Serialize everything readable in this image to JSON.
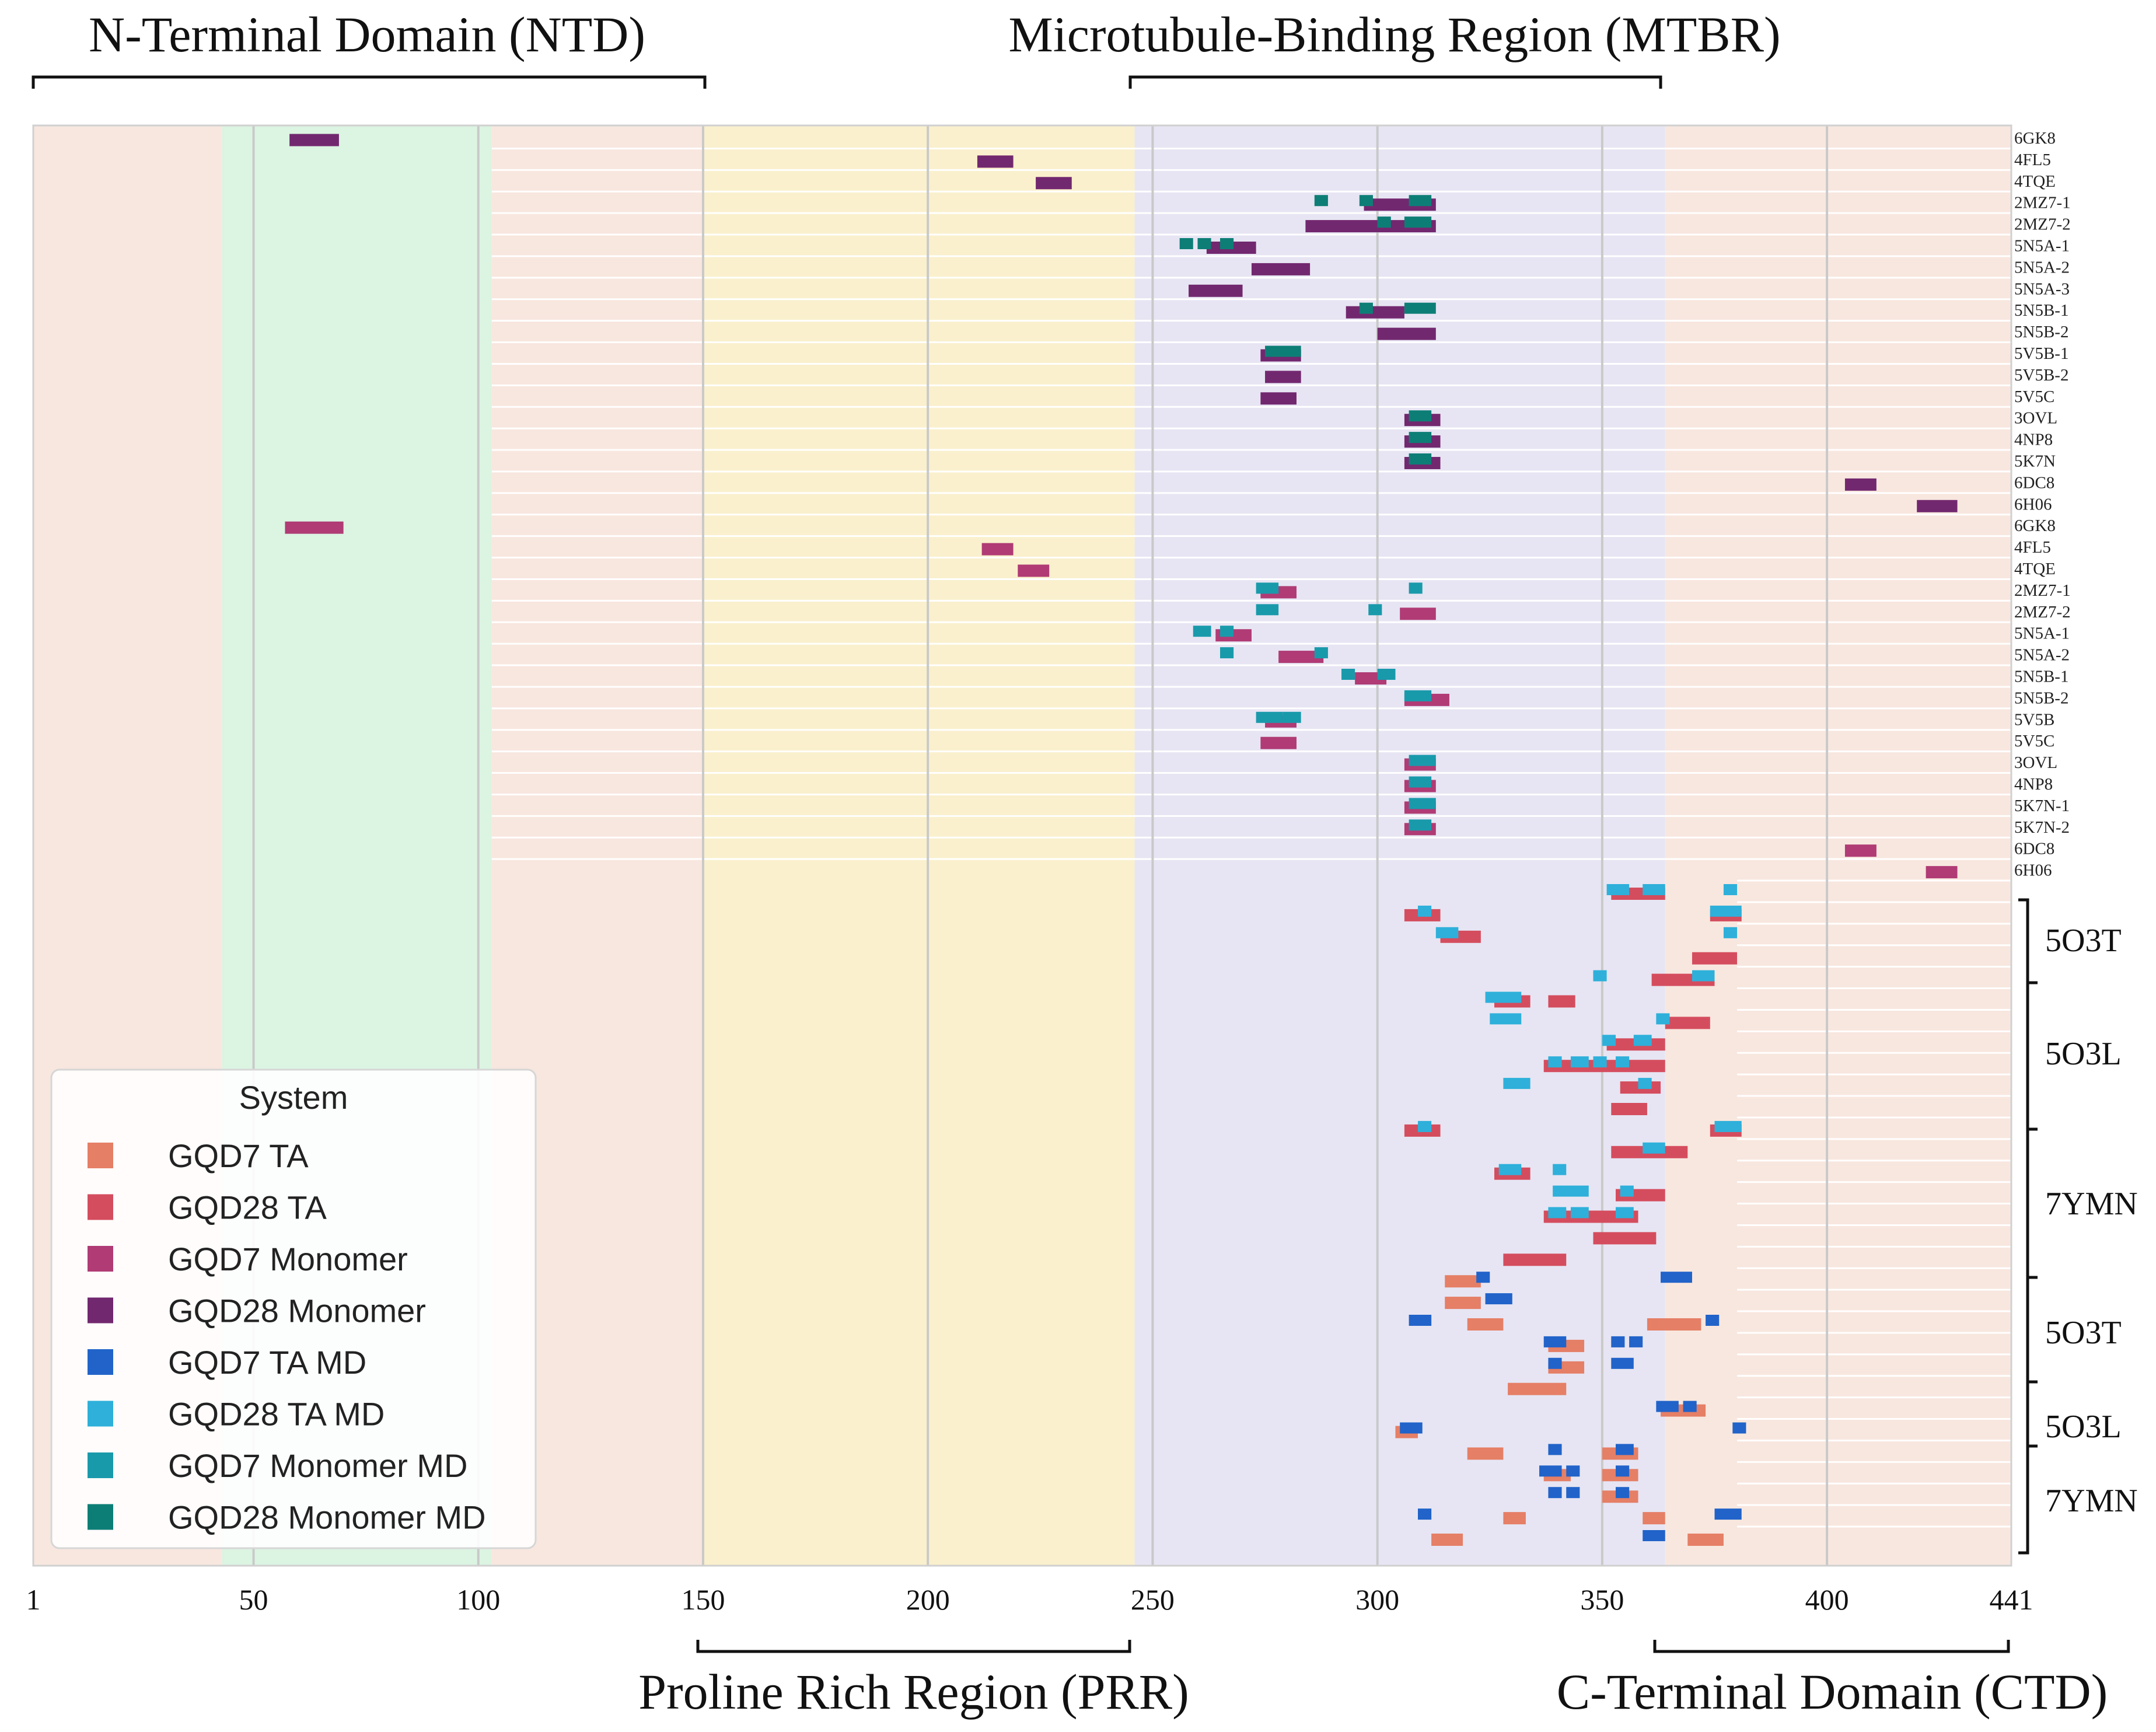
{
  "chart_data": {
    "type": "interval",
    "xlim": [
      1,
      441
    ],
    "x_ticks": [
      1,
      50,
      100,
      150,
      200,
      250,
      300,
      350,
      400,
      441
    ],
    "domains_top": [
      {
        "label": "N-Terminal Domain (NTD)",
        "start": 1,
        "end": 150
      },
      {
        "label": "Microtubule-Binding Region (MTBR)",
        "start": 244,
        "end": 363
      }
    ],
    "domains_bottom": [
      {
        "label": "Proline Rich Region (PRR)",
        "start": 151,
        "end": 243
      },
      {
        "label": "C-Terminal Domain (CTD)",
        "start": 364,
        "end": 441
      }
    ],
    "background_bands": [
      {
        "start": 1,
        "end": 43,
        "color": "#f8e7df"
      },
      {
        "start": 43,
        "end": 103,
        "color": "#dcf4e2"
      },
      {
        "start": 103,
        "end": 150,
        "color": "#f8e7df"
      },
      {
        "start": 150,
        "end": 246,
        "color": "#faf0cd"
      },
      {
        "start": 246,
        "end": 364,
        "color": "#e7e5f3"
      },
      {
        "start": 364,
        "end": 441,
        "color": "#f8e7df"
      }
    ],
    "legend": {
      "title": "System",
      "entries": [
        {
          "key": "g7ta",
          "label": "GQD7 TA",
          "color": "#e57f66"
        },
        {
          "key": "g28ta",
          "label": "GQD28 TA",
          "color": "#d44d5e"
        },
        {
          "key": "g7mono",
          "label": "GQD7 Monomer",
          "color": "#b03b75"
        },
        {
          "key": "g28mono",
          "label": "GQD28 Monomer",
          "color": "#72286f"
        },
        {
          "key": "g7tamd",
          "label": "GQD7 TA MD",
          "color": "#2163c9"
        },
        {
          "key": "g28tamd",
          "label": "GQD28 TA MD",
          "color": "#2eb0da"
        },
        {
          "key": "g7monomd",
          "label": "GQD7 Monomer MD",
          "color": "#199aab"
        },
        {
          "key": "g28monomd",
          "label": "GQD28 Monomer MD",
          "color": "#0d7e76"
        }
      ]
    },
    "row_labels": [
      "6GK8",
      "4FL5",
      "4TQE",
      "2MZ7-1",
      "2MZ7-2",
      "5N5A-1",
      "5N5A-2",
      "5N5A-3",
      "5N5B-1",
      "5N5B-2",
      "5V5B-1",
      "5V5B-2",
      "5V5C",
      "3OVL",
      "4NP8",
      "5K7N",
      "6DC8",
      "6H06",
      "6GK8",
      "4FL5",
      "4TQE",
      "2MZ7-1",
      "2MZ7-2",
      "5N5A-1",
      "5N5A-2",
      "5N5B-1",
      "5N5B-2",
      "5V5B",
      "5V5C",
      "3OVL",
      "4NP8",
      "5K7N-1",
      "5K7N-2",
      "6DC8",
      "6H06"
    ],
    "group_labels": [
      "5O3T",
      "5O3L",
      "7YMN",
      "5O3T",
      "5O3L",
      "7YMN"
    ],
    "intervals": [
      {
        "system": "g28mono",
        "row": 0,
        "start": 58,
        "end": 69
      },
      {
        "system": "g28mono",
        "row": 1,
        "start": 211,
        "end": 219
      },
      {
        "system": "g28mono",
        "row": 2,
        "start": 224,
        "end": 232
      },
      {
        "system": "g28mono",
        "row": 3,
        "start": 297,
        "end": 313
      },
      {
        "system": "g28monomd",
        "row": 3,
        "start": 286,
        "end": 289
      },
      {
        "system": "g28monomd",
        "row": 3,
        "start": 296,
        "end": 299
      },
      {
        "system": "g28monomd",
        "row": 3,
        "start": 307,
        "end": 312
      },
      {
        "system": "g28mono",
        "row": 4,
        "start": 284,
        "end": 313
      },
      {
        "system": "g28monomd",
        "row": 4,
        "start": 300,
        "end": 303
      },
      {
        "system": "g28monomd",
        "row": 4,
        "start": 306,
        "end": 312
      },
      {
        "system": "g28mono",
        "row": 5,
        "start": 262,
        "end": 273
      },
      {
        "system": "g28monomd",
        "row": 5,
        "start": 256,
        "end": 259
      },
      {
        "system": "g28monomd",
        "row": 5,
        "start": 260,
        "end": 263
      },
      {
        "system": "g28monomd",
        "row": 5,
        "start": 265,
        "end": 268
      },
      {
        "system": "g28mono",
        "row": 6,
        "start": 272,
        "end": 285
      },
      {
        "system": "g28mono",
        "row": 7,
        "start": 258,
        "end": 270
      },
      {
        "system": "g28mono",
        "row": 8,
        "start": 293,
        "end": 306
      },
      {
        "system": "g28monomd",
        "row": 8,
        "start": 296,
        "end": 299
      },
      {
        "system": "g28monomd",
        "row": 8,
        "start": 306,
        "end": 313
      },
      {
        "system": "g28mono",
        "row": 9,
        "start": 300,
        "end": 313
      },
      {
        "system": "g28mono",
        "row": 10,
        "start": 274,
        "end": 283
      },
      {
        "system": "g28monomd",
        "row": 10,
        "start": 275,
        "end": 281
      },
      {
        "system": "g28monomd",
        "row": 10,
        "start": 280,
        "end": 283
      },
      {
        "system": "g28mono",
        "row": 11,
        "start": 275,
        "end": 283
      },
      {
        "system": "g28mono",
        "row": 12,
        "start": 274,
        "end": 282
      },
      {
        "system": "g28mono",
        "row": 13,
        "start": 306,
        "end": 314
      },
      {
        "system": "g28monomd",
        "row": 13,
        "start": 307,
        "end": 312
      },
      {
        "system": "g28mono",
        "row": 14,
        "start": 306,
        "end": 314
      },
      {
        "system": "g28monomd",
        "row": 14,
        "start": 307,
        "end": 312
      },
      {
        "system": "g28mono",
        "row": 15,
        "start": 306,
        "end": 314
      },
      {
        "system": "g28monomd",
        "row": 15,
        "start": 307,
        "end": 312
      },
      {
        "system": "g28mono",
        "row": 16,
        "start": 404,
        "end": 411
      },
      {
        "system": "g28mono",
        "row": 17,
        "start": 420,
        "end": 429
      },
      {
        "system": "g7mono",
        "row": 18,
        "start": 57,
        "end": 70
      },
      {
        "system": "g7mono",
        "row": 19,
        "start": 212,
        "end": 219
      },
      {
        "system": "g7mono",
        "row": 20,
        "start": 220,
        "end": 227
      },
      {
        "system": "g7mono",
        "row": 21,
        "start": 274,
        "end": 282
      },
      {
        "system": "g7monomd",
        "row": 21,
        "start": 273,
        "end": 278
      },
      {
        "system": "g7monomd",
        "row": 21,
        "start": 307,
        "end": 310
      },
      {
        "system": "g7mono",
        "row": 22,
        "start": 305,
        "end": 313
      },
      {
        "system": "g7monomd",
        "row": 22,
        "start": 273,
        "end": 278
      },
      {
        "system": "g7monomd",
        "row": 22,
        "start": 298,
        "end": 301
      },
      {
        "system": "g7mono",
        "row": 23,
        "start": 264,
        "end": 272
      },
      {
        "system": "g7monomd",
        "row": 23,
        "start": 259,
        "end": 263
      },
      {
        "system": "g7monomd",
        "row": 23,
        "start": 265,
        "end": 268
      },
      {
        "system": "g7monomd",
        "row": 24,
        "start": 265,
        "end": 268
      },
      {
        "system": "g7mono",
        "row": 24,
        "start": 278,
        "end": 288
      },
      {
        "system": "g7monomd",
        "row": 24,
        "start": 286,
        "end": 289
      },
      {
        "system": "g7monomd",
        "row": 25,
        "start": 292,
        "end": 295
      },
      {
        "system": "g7mono",
        "row": 25,
        "start": 295,
        "end": 302
      },
      {
        "system": "g7monomd",
        "row": 25,
        "start": 300,
        "end": 304
      },
      {
        "system": "g7mono",
        "row": 26,
        "start": 306,
        "end": 316
      },
      {
        "system": "g7monomd",
        "row": 26,
        "start": 306,
        "end": 312
      },
      {
        "system": "g7mono",
        "row": 27,
        "start": 275,
        "end": 282
      },
      {
        "system": "g7monomd",
        "row": 27,
        "start": 273,
        "end": 279
      },
      {
        "system": "g7monomd",
        "row": 27,
        "start": 279,
        "end": 283
      },
      {
        "system": "g7mono",
        "row": 28,
        "start": 274,
        "end": 282
      },
      {
        "system": "g7mono",
        "row": 29,
        "start": 306,
        "end": 313
      },
      {
        "system": "g7monomd",
        "row": 29,
        "start": 307,
        "end": 313
      },
      {
        "system": "g7mono",
        "row": 30,
        "start": 306,
        "end": 313
      },
      {
        "system": "g7monomd",
        "row": 30,
        "start": 307,
        "end": 312
      },
      {
        "system": "g7mono",
        "row": 31,
        "start": 306,
        "end": 313
      },
      {
        "system": "g7monomd",
        "row": 31,
        "start": 307,
        "end": 313
      },
      {
        "system": "g7mono",
        "row": 32,
        "start": 306,
        "end": 313
      },
      {
        "system": "g7monomd",
        "row": 32,
        "start": 307,
        "end": 312
      },
      {
        "system": "g7mono",
        "row": 33,
        "start": 404,
        "end": 411
      },
      {
        "system": "g7mono",
        "row": 34,
        "start": 422,
        "end": 429
      },
      {
        "system": "g28ta",
        "row": 35,
        "start": 352,
        "end": 364
      },
      {
        "system": "g28tamd",
        "row": 35,
        "start": 351,
        "end": 356
      },
      {
        "system": "g28tamd",
        "row": 35,
        "start": 359,
        "end": 364
      },
      {
        "system": "g28tamd",
        "row": 35,
        "start": 377,
        "end": 380
      },
      {
        "system": "g28ta",
        "row": 36,
        "start": 306,
        "end": 314
      },
      {
        "system": "g28tamd",
        "row": 36,
        "start": 309,
        "end": 312
      },
      {
        "system": "g28ta",
        "row": 36,
        "start": 374,
        "end": 381
      },
      {
        "system": "g28tamd",
        "row": 36,
        "start": 374,
        "end": 381
      },
      {
        "system": "g28ta",
        "row": 37,
        "start": 314,
        "end": 323
      },
      {
        "system": "g28tamd",
        "row": 37,
        "start": 313,
        "end": 318
      },
      {
        "system": "g28tamd",
        "row": 37,
        "start": 377,
        "end": 380
      },
      {
        "system": "g28ta",
        "row": 38,
        "start": 370,
        "end": 380
      },
      {
        "system": "g28ta",
        "row": 39,
        "start": 361,
        "end": 375
      },
      {
        "system": "g28tamd",
        "row": 39,
        "start": 348,
        "end": 351
      },
      {
        "system": "g28tamd",
        "row": 39,
        "start": 370,
        "end": 375
      },
      {
        "system": "g28ta",
        "row": 40,
        "start": 326,
        "end": 334
      },
      {
        "system": "g28tamd",
        "row": 40,
        "start": 324,
        "end": 332
      },
      {
        "system": "g28ta",
        "row": 40,
        "start": 338,
        "end": 344
      },
      {
        "system": "g28tamd",
        "row": 41,
        "start": 325,
        "end": 332
      },
      {
        "system": "g28tamd",
        "row": 41,
        "start": 362,
        "end": 365
      },
      {
        "system": "g28ta",
        "row": 41,
        "start": 364,
        "end": 374
      },
      {
        "system": "g28ta",
        "row": 42,
        "start": 351,
        "end": 364
      },
      {
        "system": "g28tamd",
        "row": 42,
        "start": 350,
        "end": 353
      },
      {
        "system": "g28tamd",
        "row": 42,
        "start": 357,
        "end": 361
      },
      {
        "system": "g28ta",
        "row": 43,
        "start": 337,
        "end": 364
      },
      {
        "system": "g28tamd",
        "row": 43,
        "start": 338,
        "end": 341
      },
      {
        "system": "g28tamd",
        "row": 43,
        "start": 343,
        "end": 347
      },
      {
        "system": "g28tamd",
        "row": 43,
        "start": 348,
        "end": 351
      },
      {
        "system": "g28tamd",
        "row": 43,
        "start": 353,
        "end": 356
      },
      {
        "system": "g28tamd",
        "row": 44,
        "start": 328,
        "end": 334
      },
      {
        "system": "g28ta",
        "row": 44,
        "start": 354,
        "end": 363
      },
      {
        "system": "g28tamd",
        "row": 44,
        "start": 358,
        "end": 361
      },
      {
        "system": "g28ta",
        "row": 45,
        "start": 352,
        "end": 360
      },
      {
        "system": "g28ta",
        "row": 46,
        "start": 306,
        "end": 314
      },
      {
        "system": "g28tamd",
        "row": 46,
        "start": 309,
        "end": 312
      },
      {
        "system": "g28ta",
        "row": 46,
        "start": 374,
        "end": 381
      },
      {
        "system": "g28tamd",
        "row": 46,
        "start": 375,
        "end": 381
      },
      {
        "system": "g28ta",
        "row": 47,
        "start": 352,
        "end": 369
      },
      {
        "system": "g28tamd",
        "row": 47,
        "start": 359,
        "end": 364
      },
      {
        "system": "g28ta",
        "row": 48,
        "start": 326,
        "end": 334
      },
      {
        "system": "g28tamd",
        "row": 48,
        "start": 327,
        "end": 332
      },
      {
        "system": "g28tamd",
        "row": 48,
        "start": 339,
        "end": 342
      },
      {
        "system": "g28ta",
        "row": 49,
        "start": 353,
        "end": 364
      },
      {
        "system": "g28tamd",
        "row": 49,
        "start": 339,
        "end": 347
      },
      {
        "system": "g28tamd",
        "row": 49,
        "start": 354,
        "end": 357
      },
      {
        "system": "g28ta",
        "row": 50,
        "start": 337,
        "end": 358
      },
      {
        "system": "g28tamd",
        "row": 50,
        "start": 338,
        "end": 342
      },
      {
        "system": "g28tamd",
        "row": 50,
        "start": 343,
        "end": 347
      },
      {
        "system": "g28tamd",
        "row": 50,
        "start": 353,
        "end": 357
      },
      {
        "system": "g28ta",
        "row": 51,
        "start": 348,
        "end": 362
      },
      {
        "system": "g28ta",
        "row": 52,
        "start": 328,
        "end": 342
      },
      {
        "system": "g7ta",
        "row": 53,
        "start": 315,
        "end": 323
      },
      {
        "system": "g7tamd",
        "row": 53,
        "start": 322,
        "end": 325
      },
      {
        "system": "g7tamd",
        "row": 53,
        "start": 363,
        "end": 370
      },
      {
        "system": "g7ta",
        "row": 54,
        "start": 315,
        "end": 323
      },
      {
        "system": "g7tamd",
        "row": 54,
        "start": 324,
        "end": 330
      },
      {
        "system": "g7tamd",
        "row": 55,
        "start": 307,
        "end": 312
      },
      {
        "system": "g7ta",
        "row": 55,
        "start": 320,
        "end": 328
      },
      {
        "system": "g7ta",
        "row": 55,
        "start": 360,
        "end": 372
      },
      {
        "system": "g7tamd",
        "row": 55,
        "start": 373,
        "end": 376
      },
      {
        "system": "g7ta",
        "row": 56,
        "start": 338,
        "end": 346
      },
      {
        "system": "g7tamd",
        "row": 56,
        "start": 337,
        "end": 342
      },
      {
        "system": "g7tamd",
        "row": 56,
        "start": 352,
        "end": 355
      },
      {
        "system": "g7tamd",
        "row": 56,
        "start": 356,
        "end": 359
      },
      {
        "system": "g7ta",
        "row": 57,
        "start": 338,
        "end": 346
      },
      {
        "system": "g7tamd",
        "row": 57,
        "start": 338,
        "end": 341
      },
      {
        "system": "g7tamd",
        "row": 57,
        "start": 352,
        "end": 357
      },
      {
        "system": "g7ta",
        "row": 58,
        "start": 329,
        "end": 342
      },
      {
        "system": "g7tamd",
        "row": 59,
        "start": 362,
        "end": 367
      },
      {
        "system": "g7ta",
        "row": 59,
        "start": 363,
        "end": 373
      },
      {
        "system": "g7tamd",
        "row": 59,
        "start": 368,
        "end": 371
      },
      {
        "system": "g7ta",
        "row": 60,
        "start": 304,
        "end": 309
      },
      {
        "system": "g7tamd",
        "row": 60,
        "start": 305,
        "end": 310
      },
      {
        "system": "g7tamd",
        "row": 60,
        "start": 379,
        "end": 382
      },
      {
        "system": "g7ta",
        "row": 61,
        "start": 320,
        "end": 328
      },
      {
        "system": "g7tamd",
        "row": 61,
        "start": 338,
        "end": 341
      },
      {
        "system": "g7ta",
        "row": 61,
        "start": 350,
        "end": 358
      },
      {
        "system": "g7tamd",
        "row": 61,
        "start": 353,
        "end": 357
      },
      {
        "system": "g7ta",
        "row": 62,
        "start": 337,
        "end": 343
      },
      {
        "system": "g7tamd",
        "row": 62,
        "start": 336,
        "end": 341
      },
      {
        "system": "g7tamd",
        "row": 62,
        "start": 342,
        "end": 345
      },
      {
        "system": "g7ta",
        "row": 62,
        "start": 350,
        "end": 358
      },
      {
        "system": "g7tamd",
        "row": 62,
        "start": 353,
        "end": 356
      },
      {
        "system": "g7tamd",
        "row": 63,
        "start": 338,
        "end": 341
      },
      {
        "system": "g7tamd",
        "row": 63,
        "start": 342,
        "end": 345
      },
      {
        "system": "g7ta",
        "row": 63,
        "start": 350,
        "end": 358
      },
      {
        "system": "g7tamd",
        "row": 63,
        "start": 353,
        "end": 356
      },
      {
        "system": "g7tamd",
        "row": 64,
        "start": 309,
        "end": 312
      },
      {
        "system": "g7ta",
        "row": 64,
        "start": 328,
        "end": 333
      },
      {
        "system": "g7ta",
        "row": 64,
        "start": 359,
        "end": 364
      },
      {
        "system": "g7tamd",
        "row": 64,
        "start": 375,
        "end": 381
      },
      {
        "system": "g7tamd",
        "row": 65,
        "start": 359,
        "end": 364
      },
      {
        "system": "g7ta",
        "row": 65,
        "start": 312,
        "end": 319
      },
      {
        "system": "g7ta",
        "row": 65,
        "start": 369,
        "end": 377
      }
    ]
  }
}
